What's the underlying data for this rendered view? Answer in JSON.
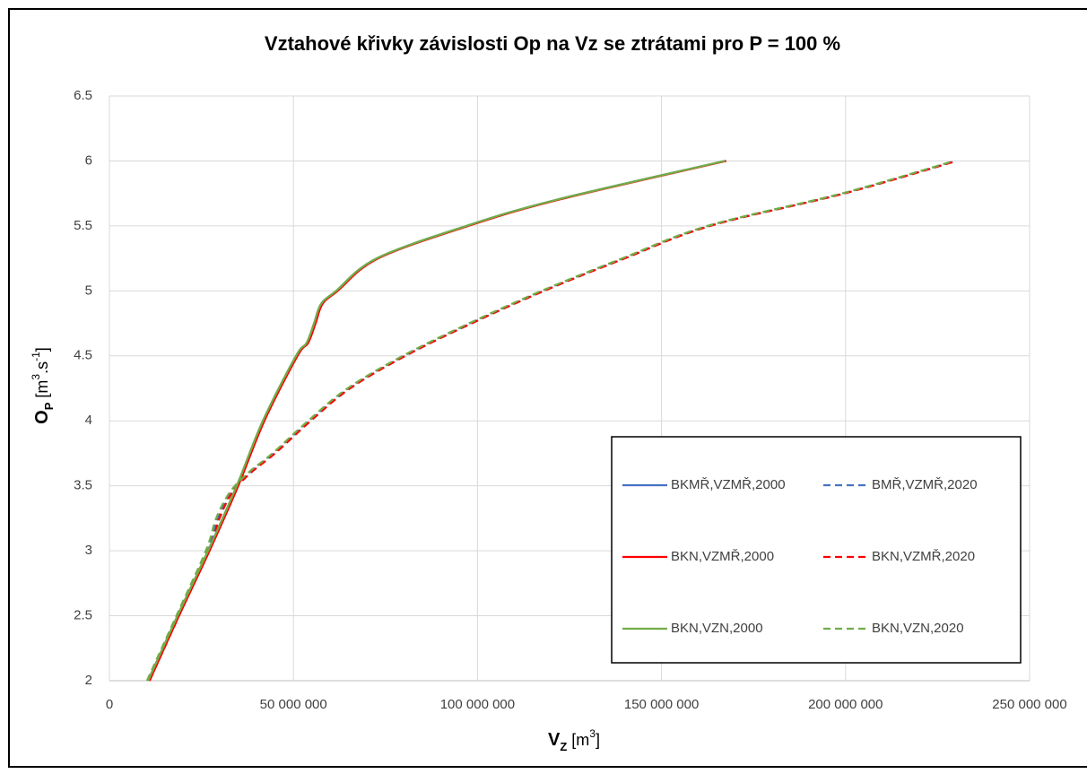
{
  "chart_data": {
    "type": "line",
    "title": "Vztahové křivky závislosti Op na Vz se ztrátami pro P = 100 %",
    "x_label": [
      "V",
      "Z",
      " [m",
      "3",
      "]"
    ],
    "y_label": [
      "O",
      "P",
      " [m",
      "3",
      ".s",
      "-1",
      "]"
    ],
    "xlim": [
      0,
      250000000
    ],
    "ylim": [
      2,
      6.5
    ],
    "xticks": [
      0,
      {
        "value": 50000000,
        "label": "50 000 000"
      },
      {
        "value": 100000000,
        "label": "100 000 000"
      },
      {
        "value": 150000000,
        "label": "150 000 000"
      },
      {
        "value": 200000000,
        "label": "200 000 000"
      },
      {
        "value": 250000000,
        "label": "250 000 000"
      }
    ],
    "yticks": [
      2,
      2.5,
      3,
      3.5,
      4,
      4.5,
      5,
      5.5,
      6,
      6.5
    ],
    "grid": true,
    "legend": "lower right",
    "series": [
      {
        "name": "BKMŘ,VZMŘ,2000",
        "color": "#4472c4",
        "dashed": false,
        "x": [
          10500000,
          18500000,
          26800000,
          34600000,
          41700000,
          50700000,
          53600000,
          55600000,
          57500000,
          61600000,
          72600000,
          97000000,
          121300000,
          167200000
        ],
        "values": [
          2,
          2.5,
          3,
          3.5,
          4,
          4.5,
          4.6,
          4.75,
          4.9,
          5,
          5.25,
          5.5,
          5.7,
          6
        ]
      },
      {
        "name": "BMŘ,VZMŘ,2020",
        "color": "#4472c4",
        "dashed": true,
        "x": [
          10500000,
          18500000,
          26600000,
          29500000,
          33000000,
          38000000,
          44600000,
          54300000,
          65000000,
          80000000,
          98000000,
          117700000,
          139600000,
          162800000,
          199300000,
          229800000
        ],
        "values": [
          2,
          2.5,
          3,
          3.25,
          3.45,
          3.6,
          3.75,
          4,
          4.25,
          4.5,
          4.75,
          5,
          5.25,
          5.5,
          5.75,
          6
        ]
      },
      {
        "name": "BKN,VZMŘ,2000",
        "color": "#ff0000",
        "dashed": false,
        "x": [
          10900000,
          18900000,
          27200000,
          35000000,
          42100000,
          51100000,
          54000000,
          56000000,
          57900000,
          62000000,
          73000000,
          97500000,
          121800000,
          167600000
        ],
        "values": [
          2,
          2.5,
          3,
          3.5,
          4,
          4.5,
          4.6,
          4.75,
          4.9,
          5,
          5.25,
          5.5,
          5.7,
          6
        ]
      },
      {
        "name": "BKN,VZMŘ,2020",
        "color": "#ff0000",
        "dashed": true,
        "x": [
          10900000,
          18900000,
          27000000,
          29900000,
          33400000,
          38400000,
          45000000,
          54700000,
          65400000,
          80400000,
          98400000,
          118100000,
          140000000,
          163200000,
          199700000,
          230200000
        ],
        "values": [
          2,
          2.5,
          3,
          3.25,
          3.45,
          3.6,
          3.75,
          4,
          4.25,
          4.5,
          4.75,
          5,
          5.25,
          5.5,
          5.75,
          6
        ]
      },
      {
        "name": "BKN,VZN,2000",
        "color": "#70ad47",
        "dashed": false,
        "x": [
          10500000,
          18500000,
          26800000,
          34600000,
          41700000,
          50700000,
          53600000,
          55600000,
          57500000,
          61600000,
          72600000,
          97000000,
          121300000,
          167200000
        ],
        "values": [
          2,
          2.5,
          3,
          3.5,
          4,
          4.5,
          4.6,
          4.75,
          4.9,
          5,
          5.25,
          5.5,
          5.7,
          6
        ]
      },
      {
        "name": "BKN,VZN,2020",
        "color": "#70ad47",
        "dashed": true,
        "x": [
          10200000,
          18200000,
          26200000,
          29000000,
          32700000,
          37700000,
          44300000,
          54000000,
          64700000,
          79700000,
          97700000,
          117400000,
          139300000,
          162500000,
          199000000,
          229500000
        ],
        "values": [
          2,
          2.5,
          3,
          3.25,
          3.45,
          3.6,
          3.75,
          4,
          4.25,
          4.5,
          4.75,
          5,
          5.25,
          5.5,
          5.75,
          6
        ]
      }
    ]
  }
}
